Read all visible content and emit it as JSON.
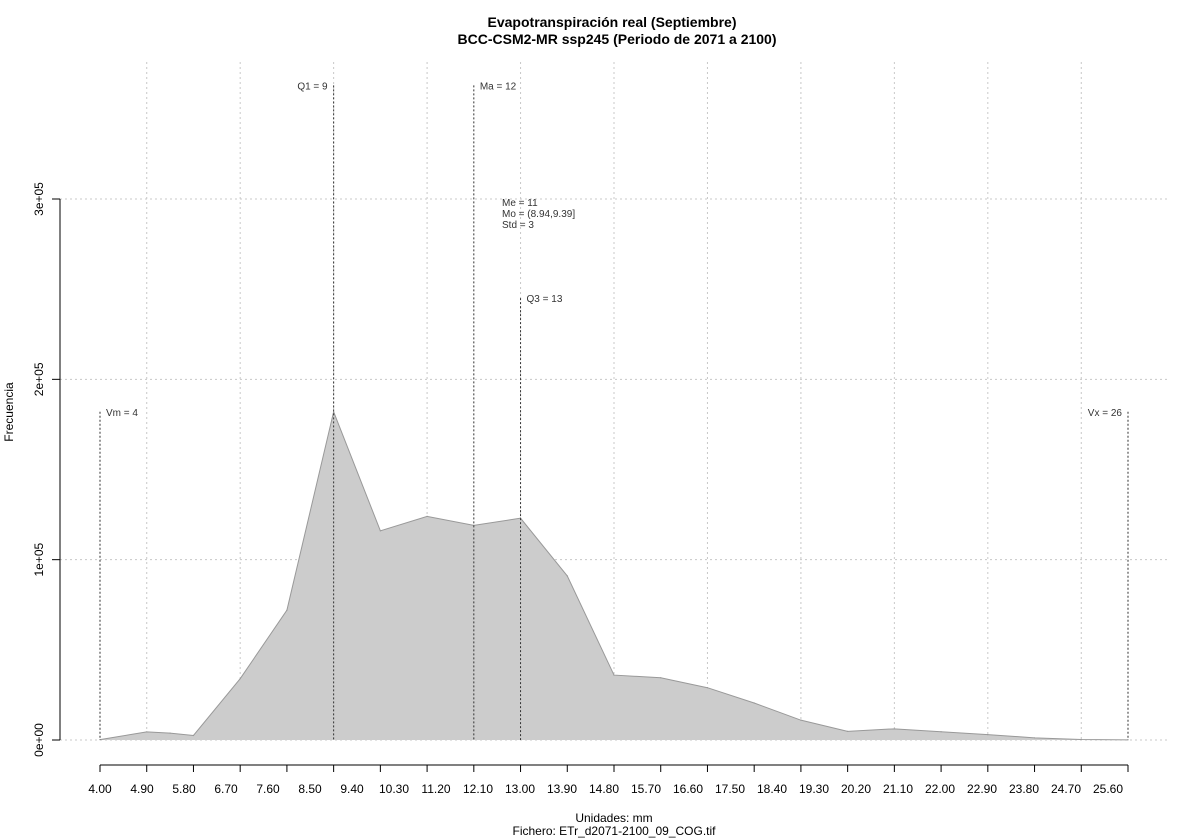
{
  "chart_data": {
    "type": "area",
    "title": "Evapotranspiración real (Septiembre)",
    "subtitle": "BCC-CSM2-MR ssp245 (Periodo de 2071 a 2100)",
    "xlabel": "Unidades: mm",
    "caption": "Fichero: ETr_d2071-2100_09_COG.tif",
    "ylabel": "Frecuencia",
    "xlim": [
      4.0,
      26.0
    ],
    "ylim": [
      0,
      300000
    ],
    "grid": true,
    "x_ticks": [
      "4.00",
      "4.90",
      "5.80",
      "6.70",
      "7.60",
      "8.50",
      "9.40",
      "10.30",
      "11.20",
      "12.10",
      "13.00",
      "13.90",
      "14.80",
      "15.70",
      "16.60",
      "17.50",
      "18.40",
      "19.30",
      "20.20",
      "21.10",
      "22.00",
      "22.90",
      "23.80",
      "24.70",
      "25.60"
    ],
    "y_ticks": [
      {
        "value": 0,
        "label": "0e+00"
      },
      {
        "value": 100000,
        "label": "1e+05"
      },
      {
        "value": 200000,
        "label": "2e+05"
      },
      {
        "value": 300000,
        "label": "3e+05"
      }
    ],
    "series": [
      {
        "x": [
          4.0,
          5.0,
          5.5,
          6.0,
          7.0,
          8.0,
          9.0,
          10.0,
          11.0,
          12.0,
          13.0,
          14.0,
          15.0,
          16.0,
          17.0,
          18.0,
          19.0,
          20.0,
          21.0,
          22.0,
          23.0,
          24.0,
          25.0,
          26.0
        ],
        "values": [
          200,
          4500,
          3800,
          2500,
          34000,
          72000,
          182000,
          116000,
          124000,
          119000,
          123000,
          91000,
          36000,
          34500,
          29000,
          20500,
          11000,
          4800,
          6200,
          4600,
          3000,
          1200,
          300,
          100
        ]
      }
    ],
    "annotations": [
      {
        "label": "Vm = 4",
        "x": 4.0,
        "y": 182000,
        "text_side": "right"
      },
      {
        "label": "Q1 = 9",
        "x": 9.0,
        "y": 363000,
        "text_side": "left"
      },
      {
        "label": "Ma = 12",
        "x": 12.0,
        "y": 363000,
        "text_side": "right"
      },
      {
        "label": "Q3 = 13",
        "x": 13.0,
        "y": 245000,
        "text_side": "right"
      },
      {
        "label": "Vx = 26",
        "x": 26.0,
        "y": 182000,
        "text_side": "left"
      }
    ],
    "stats": [
      "Me = 11",
      "Mo = (8.94,9.39]",
      "Std = 3"
    ],
    "colors": {
      "fill": "#cccccc",
      "stroke": "#999999",
      "grid": "#c8c8c8",
      "axis": "#000000"
    }
  }
}
